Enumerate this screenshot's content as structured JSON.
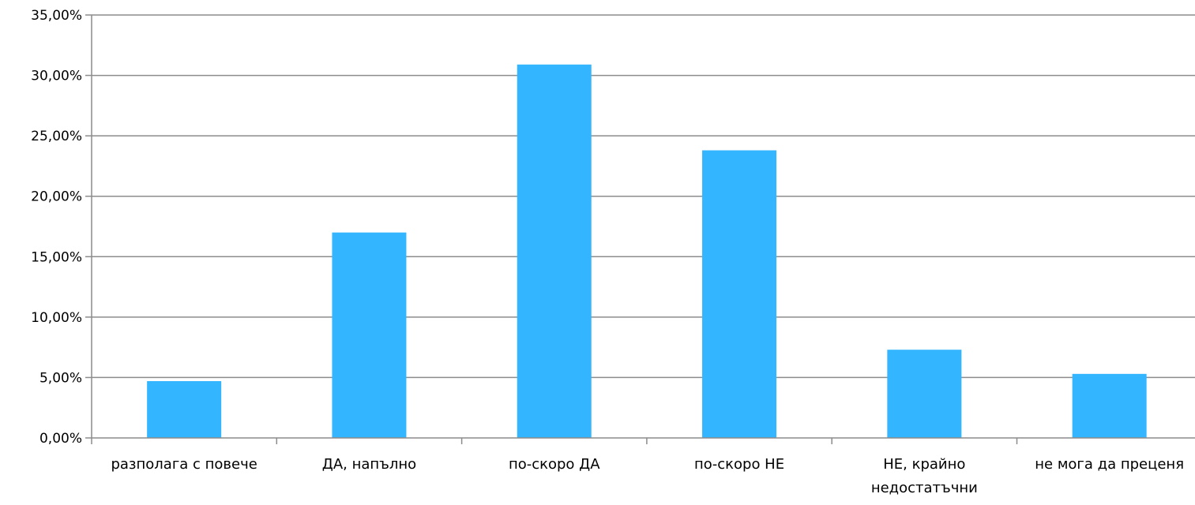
{
  "chart_data": {
    "type": "bar",
    "title": "",
    "xlabel": "",
    "ylabel": "",
    "categories": [
      [
        "разполага с повече"
      ],
      [
        "ДА, напълно"
      ],
      [
        "по-скоро ДА"
      ],
      [
        "по-скоро НЕ"
      ],
      [
        "НЕ,  крайно",
        "недостатъчни"
      ],
      [
        "не мога да преценя"
      ]
    ],
    "values": [
      4.7,
      17.0,
      30.9,
      23.8,
      7.3,
      5.3
    ],
    "ylim": [
      0,
      35
    ],
    "yticks": [
      "0,00%",
      "5,00%",
      "10,00%",
      "15,00%",
      "20,00%",
      "25,00%",
      "30,00%",
      "35,00%"
    ],
    "grid": true,
    "legend": "none",
    "bar_color": "#33b5ff",
    "grid_color": "#8c8c8c"
  }
}
